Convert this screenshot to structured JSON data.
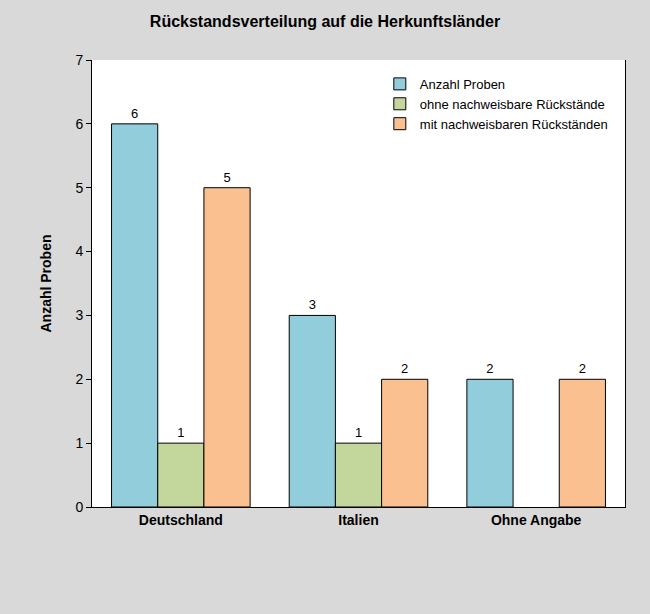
{
  "chart_data": {
    "type": "bar",
    "title": "Rückstandsverteilung auf die Herkunftsländer",
    "y_label": "Anzahl Proben",
    "categories": [
      "Deutschland",
      "Italien",
      "Ohne Angabe"
    ],
    "series": [
      {
        "name": "Anzahl Proben",
        "color": "#92cddc",
        "values": [
          6,
          3,
          2
        ]
      },
      {
        "name": "ohne nachweisbare Rückstände",
        "color": "#c3d69b",
        "values": [
          1,
          1,
          null
        ]
      },
      {
        "name": "mit nachweisbaren Rückständen",
        "color": "#fac090",
        "values": [
          5,
          2,
          2
        ]
      }
    ],
    "ylim": [
      0,
      7
    ],
    "yticks": [
      0,
      1,
      2,
      3,
      4,
      5,
      6,
      7
    ],
    "grid": false,
    "legend": "upper right",
    "data_labels": true
  }
}
